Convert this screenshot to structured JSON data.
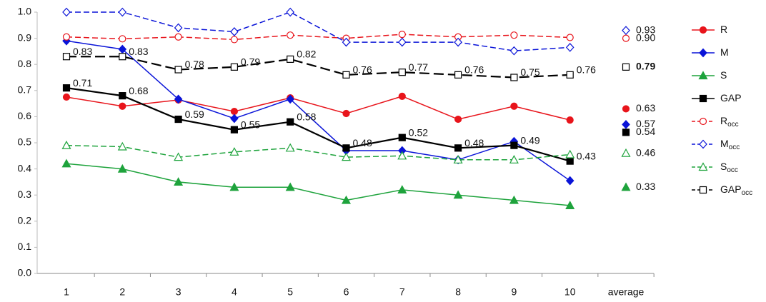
{
  "chart_data": {
    "type": "line",
    "categories": [
      "1",
      "2",
      "3",
      "4",
      "5",
      "6",
      "7",
      "8",
      "9",
      "10",
      "average"
    ],
    "connect_last": false,
    "ylim": [
      0,
      1
    ],
    "yticks": [
      {
        "value": 0,
        "label": "0.0"
      },
      {
        "value": 0.1,
        "label": "0.1"
      },
      {
        "value": 0.2,
        "label": "0.2"
      },
      {
        "value": 0.3,
        "label": "0.3"
      },
      {
        "value": 0.4,
        "label": "0.4"
      },
      {
        "value": 0.5,
        "label": "0.5"
      },
      {
        "value": 0.6,
        "label": "0.6"
      },
      {
        "value": 0.7,
        "label": "0.7"
      },
      {
        "value": 0.8,
        "label": "0.8"
      },
      {
        "value": 0.9,
        "label": "0.9"
      },
      {
        "value": 1,
        "label": "1.0"
      }
    ],
    "grid": false,
    "legend": "right",
    "series": [
      {
        "name": "R",
        "color": "#e8141b",
        "marker": "circle",
        "filled": true,
        "dashed": false,
        "values": [
          0.675,
          0.64,
          0.664,
          0.62,
          0.672,
          0.612,
          0.678,
          0.59,
          0.64,
          0.587,
          0.63
        ],
        "value_labels": [
          null,
          null,
          null,
          null,
          null,
          null,
          null,
          null,
          null,
          null,
          "0.63"
        ]
      },
      {
        "name": "M",
        "color": "#0a14d8",
        "marker": "diamond",
        "filled": true,
        "dashed": false,
        "values": [
          0.89,
          0.858,
          0.667,
          0.593,
          0.667,
          0.47,
          0.47,
          0.435,
          0.505,
          0.355,
          0.57
        ],
        "value_labels": [
          null,
          null,
          null,
          null,
          null,
          null,
          null,
          null,
          null,
          null,
          "0.57"
        ]
      },
      {
        "name": "S",
        "color": "#1ea33c",
        "marker": "triangle",
        "filled": true,
        "dashed": false,
        "values": [
          0.42,
          0.4,
          0.35,
          0.33,
          0.33,
          0.28,
          0.32,
          0.3,
          0.28,
          0.26,
          0.33
        ],
        "value_labels": [
          null,
          null,
          null,
          null,
          null,
          null,
          null,
          null,
          null,
          null,
          "0.33"
        ]
      },
      {
        "name": "GAP",
        "color": "#000000",
        "marker": "square",
        "filled": true,
        "dashed": false,
        "values": [
          0.71,
          0.68,
          0.59,
          0.55,
          0.58,
          0.48,
          0.52,
          0.48,
          0.49,
          0.43,
          0.54
        ],
        "value_labels": [
          "0.71",
          "0.68",
          "0.59",
          "0.55",
          "0.58",
          "0.48",
          "0.52",
          "0.48",
          "0.49",
          "0.43",
          "0.54"
        ]
      },
      {
        "name": "R",
        "name_sub": "occ",
        "color": "#e8141b",
        "marker": "circle",
        "filled": false,
        "dashed": true,
        "values": [
          0.905,
          0.898,
          0.905,
          0.895,
          0.912,
          0.9,
          0.915,
          0.905,
          0.912,
          0.903,
          0.9
        ],
        "value_labels": [
          null,
          null,
          null,
          null,
          null,
          null,
          null,
          null,
          null,
          null,
          "0.90"
        ]
      },
      {
        "name": "M",
        "name_sub": "occ",
        "color": "#0a14d8",
        "marker": "diamond",
        "filled": false,
        "dashed": true,
        "values": [
          1,
          1,
          0.94,
          0.925,
          1,
          0.885,
          0.885,
          0.885,
          0.852,
          0.865,
          0.93
        ],
        "value_labels": [
          null,
          null,
          null,
          null,
          null,
          null,
          null,
          null,
          null,
          null,
          "0.93"
        ]
      },
      {
        "name": "S",
        "name_sub": "occ",
        "color": "#1ea33c",
        "marker": "triangle",
        "filled": false,
        "dashed": true,
        "values": [
          0.49,
          0.485,
          0.445,
          0.465,
          0.48,
          0.445,
          0.45,
          0.435,
          0.435,
          0.455,
          0.46
        ],
        "value_labels": [
          null,
          null,
          null,
          null,
          null,
          null,
          null,
          null,
          null,
          null,
          "0.46"
        ]
      },
      {
        "name": "GAP",
        "name_sub": "occ",
        "color": "#000000",
        "marker": "square",
        "filled": false,
        "dashed": true,
        "values": [
          0.83,
          0.83,
          0.78,
          0.79,
          0.82,
          0.76,
          0.77,
          0.76,
          0.75,
          0.76,
          0.79
        ],
        "value_labels": [
          "0.83",
          "0.83",
          "0.78",
          "0.79",
          "0.82",
          "0.76",
          "0.77",
          "0.76",
          "0.75",
          "0.76",
          "0.79"
        ]
      }
    ]
  }
}
